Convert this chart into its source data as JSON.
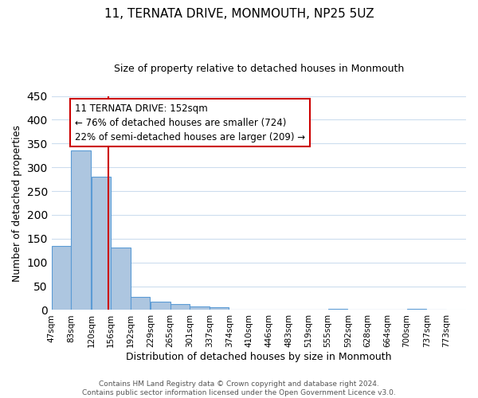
{
  "title": "11, TERNATA DRIVE, MONMOUTH, NP25 5UZ",
  "subtitle": "Size of property relative to detached houses in Monmouth",
  "xlabel": "Distribution of detached houses by size in Monmouth",
  "ylabel": "Number of detached properties",
  "bar_edges": [
    47,
    83,
    120,
    156,
    192,
    229,
    265,
    301,
    337,
    374,
    410,
    446,
    483,
    519,
    555,
    592,
    628,
    664,
    700,
    737,
    773
  ],
  "bar_heights": [
    135,
    336,
    281,
    132,
    27,
    18,
    13,
    8,
    5,
    0,
    0,
    0,
    0,
    0,
    2,
    0,
    0,
    0,
    3,
    0
  ],
  "bar_color": "#adc6e0",
  "bar_edge_color": "#5b9bd5",
  "property_line_x": 152,
  "property_line_color": "#cc0000",
  "annotation_text": "11 TERNATA DRIVE: 152sqm\n← 76% of detached houses are smaller (724)\n22% of semi-detached houses are larger (209) →",
  "annotation_box_color": "#cc0000",
  "ylim": [
    0,
    450
  ],
  "yticks": [
    0,
    50,
    100,
    150,
    200,
    250,
    300,
    350,
    400,
    450
  ],
  "footer_line1": "Contains HM Land Registry data © Crown copyright and database right 2024.",
  "footer_line2": "Contains public sector information licensed under the Open Government Licence v3.0.",
  "bg_color": "#ffffff",
  "grid_color": "#ccddee",
  "tick_labels": [
    "47sqm",
    "83sqm",
    "120sqm",
    "156sqm",
    "192sqm",
    "229sqm",
    "265sqm",
    "301sqm",
    "337sqm",
    "374sqm",
    "410sqm",
    "446sqm",
    "483sqm",
    "519sqm",
    "555sqm",
    "592sqm",
    "628sqm",
    "664sqm",
    "700sqm",
    "737sqm",
    "773sqm"
  ],
  "title_fontsize": 11,
  "subtitle_fontsize": 9,
  "ylabel_fontsize": 9,
  "xlabel_fontsize": 9,
  "tick_fontsize": 7.5,
  "annotation_fontsize": 8.5,
  "footer_fontsize": 6.5
}
